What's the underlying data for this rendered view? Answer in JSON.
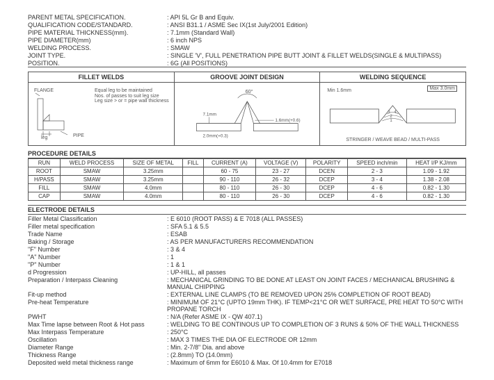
{
  "header": {
    "parent_metal": {
      "label": "PARENT METAL SPECIFICATION.",
      "value": "API 5L Gr B and Equiv."
    },
    "qual_code": {
      "label": "QUALIFICATION CODE/STANDARD.",
      "value": "ANSI B31.1 / ASME Sec IX(1st July/2001 Edition)"
    },
    "pipe_thick": {
      "label": "PIPE MATERIAL THICKNESS(mm).",
      "value": "7.1mm (Standard Wall)"
    },
    "pipe_dia": {
      "label": "PIPE DIAMETER(mm)",
      "value": "6 inch NPS"
    },
    "weld_proc": {
      "label": "WELDING PROCESS.",
      "value": "SMAW"
    },
    "joint_type": {
      "label": "JOINT TYPE.",
      "value": "SINGLE 'V', FULL PENETRATION PIPE BUTT JOINT & FILLET WELDS(SINGLE & MULTIPASS)"
    },
    "position": {
      "label": "POSITION.",
      "value": "6G    (All POSITIONS)"
    }
  },
  "section_titles": {
    "fillet": "FILLET WELDS",
    "groove": "GROOVE JOINT DESIGN",
    "seq": "WELDING SEQUENCE"
  },
  "diagrams": {
    "fillet": {
      "flange": "FLANGE",
      "pipe": "PIPE",
      "note1": "Equal leg to be maintained",
      "note2": "Nos. of passes to suit leg size",
      "note3": "Leg size > or = pipe wall thickness",
      "leg": "leg"
    },
    "groove": {
      "angle": "60°",
      "gap": "1.6mm(+0.6)",
      "root": "2.0mm(+0.3)",
      "thick": "7.1mm"
    },
    "seq": {
      "min": "Min 1.6mm",
      "max": "Max 3.0mm",
      "caption": "STRINGER / WEAVE BEAD / MULTI-PASS"
    }
  },
  "proc": {
    "title": "PROCEDURE DETAILS",
    "headers": [
      "RUN",
      "WELD PROCESS",
      "SIZE OF METAL",
      "FILL",
      "CURRENT (A)",
      "VOLTAGE (V)",
      "POLARITY",
      "SPEED inch/min",
      "HEAT I/P KJ/mm"
    ],
    "rows": [
      [
        "ROOT",
        "SMAW",
        "3.25mm",
        "",
        "60 - 75",
        "23 - 27",
        "DCEN",
        "2 - 3",
        "1.09 - 1.92"
      ],
      [
        "H/PASS",
        "SMAW",
        "3.25mm",
        "",
        "90 - 110",
        "26 - 32",
        "DCEP",
        "3 - 4",
        "1.38 - 2.08"
      ],
      [
        "FILL",
        "SMAW",
        "4.0mm",
        "",
        "80 - 110",
        "26 - 30",
        "DCEP",
        "4 - 6",
        "0.82 - 1.30"
      ],
      [
        "CAP",
        "SMAW",
        "4.0mm",
        "",
        "80 - 110",
        "26 - 30",
        "DCEP",
        "4 - 6",
        "0.82 - 1.30"
      ]
    ]
  },
  "electrode": {
    "title": "ELECTRODE DETAILS",
    "items": [
      {
        "label": "Filler Metal Classification",
        "value": "E 6010 (ROOT PASS) & E 7018 (ALL PASSES)"
      },
      {
        "label": "Filler metal specification",
        "value": "SFA 5.1 & 5.5"
      },
      {
        "label": "Trade Name",
        "value": "ESAB"
      },
      {
        "label": "Baking / Storage",
        "value": "AS PER MANUFACTURERS RECOMMENDATION"
      },
      {
        "label": "\"F\" Number",
        "value": "3 & 4"
      },
      {
        "label": "\"A\" Number",
        "value": "1"
      },
      {
        "label": "\"P\" Number",
        "value": "1 & 1"
      },
      {
        "label": "     d Progression",
        "value": "UP-HILL, all passes"
      },
      {
        "label": "Preparation / Interpass Cleaning",
        "value": "MECHANICAL GRINDING TO BE DONE AT LEAST ON JOINT FACES / MECHANICAL BRUSHING & MANUAL CHIPPING"
      },
      {
        "label": "Fit-up method",
        "value": "EXTERNAL LINE CLAMPS (TO BE REMOVED UPON 25% COMPLETION OF ROOT BEAD)"
      },
      {
        "label": "Pre-heat Temperature",
        "value": "MINIMUM OF 21°C (UPTO 19mm THK). IF TEMP<21°C OR WET SURFACE, PRE HEAT TO 50°C WITH PROPANE TORCH"
      },
      {
        "label": "PWHT",
        "value": "N/A (Refer ASME IX - QW 407.1)"
      },
      {
        "label": "Max Time lapse between Root & Hot pass",
        "value": "WELDING TO BE CONTINOUS UP TO COMPLETION OF 3 RUNS & 50% OF THE WALL THICKNESS"
      },
      {
        "label": "Max Interpass Temperature",
        "value": "250°C"
      },
      {
        "label": "Oscillation",
        "value": "MAX 3 TIMES THE DIA OF ELECTRODE OR 12mm"
      },
      {
        "label": "Diameter Range",
        "value": "Min. 2-7/8\" Dia. and above"
      },
      {
        "label": "Thickness Range",
        "value": "(2.8mm) TO (14.0mm)"
      },
      {
        "label": "Deposited weld metal thickness range",
        "value": "Maximum of 6mm for E6010 & Max. Of 10.4mm for E7018"
      }
    ]
  }
}
